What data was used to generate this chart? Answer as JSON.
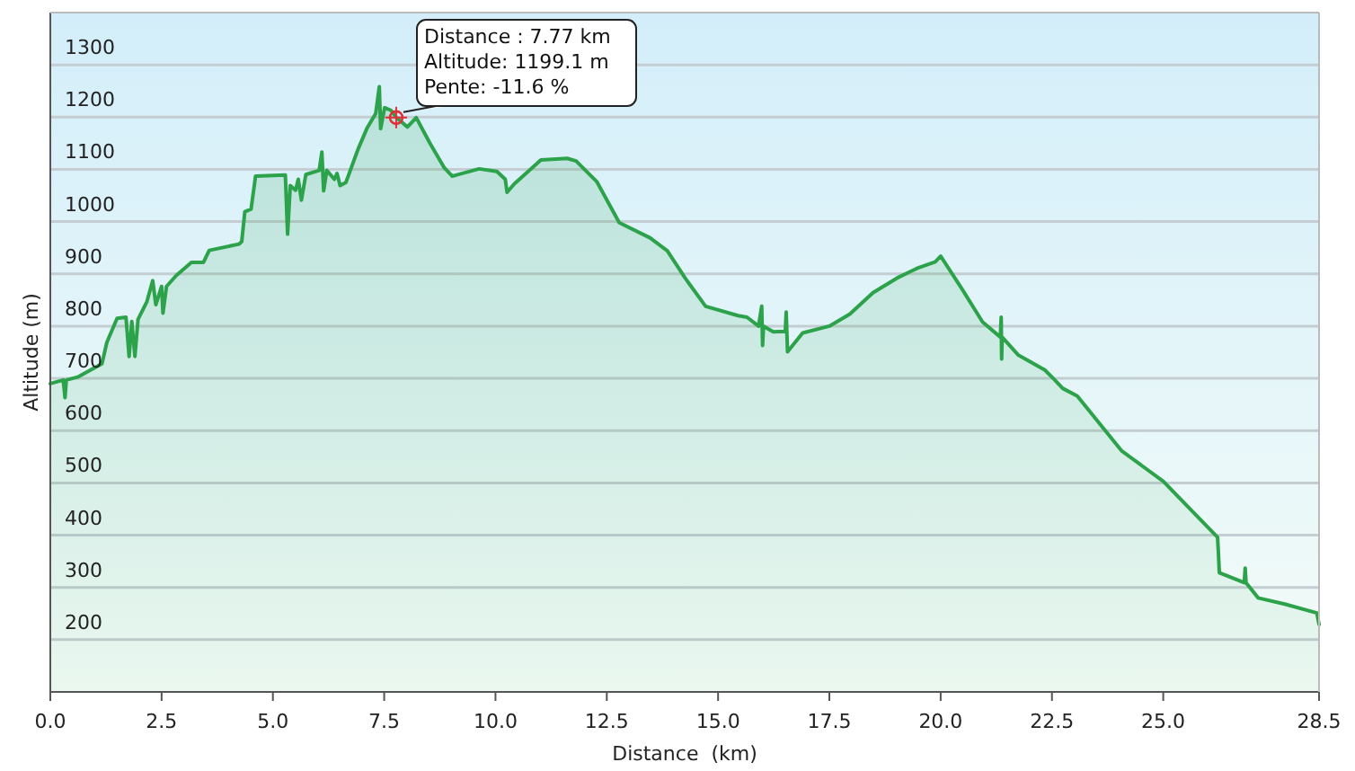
{
  "chart_data": {
    "type": "area",
    "xlabel": "Distance  (km)",
    "ylabel": "Altitude (m)",
    "xlim": [
      0,
      28.5
    ],
    "xticks": [
      {
        "value": 0,
        "label": "0.0"
      },
      2.5,
      {
        "value": 5,
        "label": "5.0"
      },
      7.5,
      {
        "value": 10,
        "label": "10.0"
      },
      12.5,
      {
        "value": 15,
        "label": "15.0"
      },
      17.5,
      {
        "value": 20,
        "label": "20.0"
      },
      22.5,
      {
        "value": 25,
        "label": "25.0"
      },
      28.5
    ],
    "ylim": [
      100,
      1400
    ],
    "yticks": [
      200,
      300,
      400,
      500,
      600,
      700,
      800,
      900,
      1000,
      1100,
      1200,
      1300
    ],
    "grid": "y",
    "x": [
      0,
      0.29,
      0.33,
      0.36,
      0.63,
      1.16,
      1.27,
      1.5,
      1.7,
      1.77,
      1.83,
      1.9,
      1.97,
      2.17,
      2.3,
      2.37,
      2.5,
      2.53,
      2.61,
      2.83,
      3.17,
      3.44,
      3.57,
      4.24,
      4.3,
      4.37,
      4.51,
      4.61,
      5.28,
      5.33,
      5.39,
      5.51,
      5.57,
      5.64,
      5.74,
      6.04,
      6.1,
      6.14,
      6.21,
      6.38,
      6.44,
      6.51,
      6.64,
      6.91,
      7.11,
      7.31,
      7.39,
      7.42,
      7.51,
      7.65,
      7.78,
      8.02,
      8.22,
      8.52,
      8.85,
      9.03,
      9.63,
      10.03,
      10.22,
      10.26,
      10.42,
      11.02,
      11.61,
      11.81,
      12.28,
      12.78,
      13.47,
      13.86,
      14.26,
      14.72,
      15.45,
      15.65,
      15.91,
      15.98,
      16.0,
      16.02,
      16.24,
      16.51,
      16.53,
      16.56,
      16.9,
      17.5,
      17.96,
      18.48,
      19.02,
      19.48,
      19.88,
      20.0,
      20.48,
      20.94,
      21.34,
      21.36,
      21.37,
      21.38,
      21.74,
      22.34,
      22.54,
      22.74,
      23.07,
      24.07,
      25.0,
      26.22,
      26.24,
      26.26,
      26.82,
      26.84,
      26.86,
      27.13,
      27.73,
      28.45,
      28.5
    ],
    "series": [
      {
        "color": "#2ca24a",
        "values": [
          690,
          697,
          663,
          697,
          703,
          728,
          769,
          815,
          817,
          742,
          809,
          742,
          813,
          847,
          887,
          841,
          876,
          825,
          876,
          897,
          922,
          922,
          945,
          957,
          962,
          1019,
          1024,
          1087,
          1089,
          976,
          1069,
          1060,
          1081,
          1041,
          1090,
          1098,
          1133,
          1059,
          1098,
          1081,
          1092,
          1069,
          1075,
          1138,
          1178,
          1207,
          1258,
          1178,
          1218,
          1213,
          1199,
          1181,
          1199,
          1151,
          1103,
          1087,
          1101,
          1096,
          1081,
          1056,
          1072,
          1118,
          1121,
          1116,
          1076,
          998,
          969,
          944,
          892,
          838,
          820,
          817,
          800,
          838,
          763,
          800,
          789,
          790,
          827,
          751,
          787,
          800,
          823,
          864,
          892,
          911,
          923,
          934,
          871,
          808,
          779,
          817,
          737,
          779,
          745,
          716,
          699,
          681,
          666,
          561,
          503,
          396,
          365,
          328,
          309,
          337,
          309,
          280,
          268,
          251,
          229
        ]
      }
    ],
    "annotations": [
      {
        "text": "Distance : 7.77 km\nAltitude: 1199.1 m\nPente: -11.6 %",
        "x": 7.77,
        "y": 1199.1
      }
    ]
  }
}
